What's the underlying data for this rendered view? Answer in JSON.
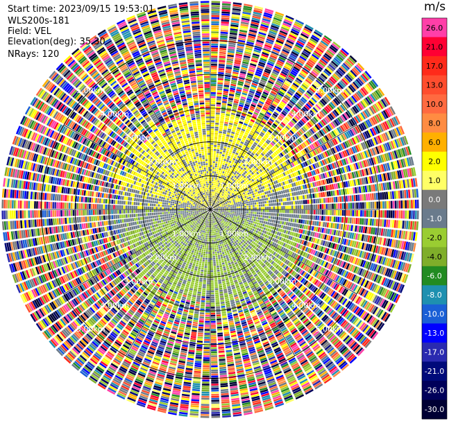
{
  "header": {
    "start_time": "Start time: 2023/09/15 19:53:01",
    "instrument": "WLS200s-181",
    "field": "Field: VEL",
    "elevation": "Elevation(deg): 35.30",
    "nrays": "NRays: 120"
  },
  "colorbar": {
    "units": "m/s",
    "levels": [
      {
        "label": "26.0",
        "color": "#ff3fa8"
      },
      {
        "label": "21.0",
        "color": "#ff0033"
      },
      {
        "label": "17.0",
        "color": "#ff2a1a"
      },
      {
        "label": "13.0",
        "color": "#ff4d2e"
      },
      {
        "label": "10.0",
        "color": "#ff6a40"
      },
      {
        "label": "8.0",
        "color": "#ff8c42"
      },
      {
        "label": "6.0",
        "color": "#ffb000"
      },
      {
        "label": "2.0",
        "color": "#ffff00"
      },
      {
        "label": "1.0",
        "color": "#ffff66"
      },
      {
        "label": "0.0",
        "color": "#7a7a7a"
      },
      {
        "label": "-1.0",
        "color": "#6a7b8c"
      },
      {
        "label": "-2.0",
        "color": "#9acd32"
      },
      {
        "label": "-4.0",
        "color": "#7fae2a"
      },
      {
        "label": "-6.0",
        "color": "#228b22"
      },
      {
        "label": "-8.0",
        "color": "#1e90b0"
      },
      {
        "label": "-10.0",
        "color": "#1a5fd6"
      },
      {
        "label": "-13.0",
        "color": "#0000ff"
      },
      {
        "label": "-17.0",
        "color": "#2a2ab0"
      },
      {
        "label": "-21.0",
        "color": "#000a7a"
      },
      {
        "label": "-26.0",
        "color": "#00005a"
      },
      {
        "label": "-30.0",
        "color": "#000033"
      }
    ]
  },
  "chart_data": {
    "type": "ppi",
    "field": "VEL",
    "units": "m/s",
    "nrays": 120,
    "range_ring_labels": [
      "1.00km",
      "2.00km",
      "3.00km",
      "4.00km",
      "5.00km"
    ],
    "range_rings_km": [
      1,
      2,
      3,
      4,
      5
    ],
    "max_range_km": 6.2,
    "spokes_deg": [
      0,
      30,
      60,
      90,
      120,
      150,
      180,
      210,
      240,
      270,
      300,
      330
    ]
  },
  "colors": {
    "ring_line": "#000000",
    "label_text": "#ffffff"
  }
}
